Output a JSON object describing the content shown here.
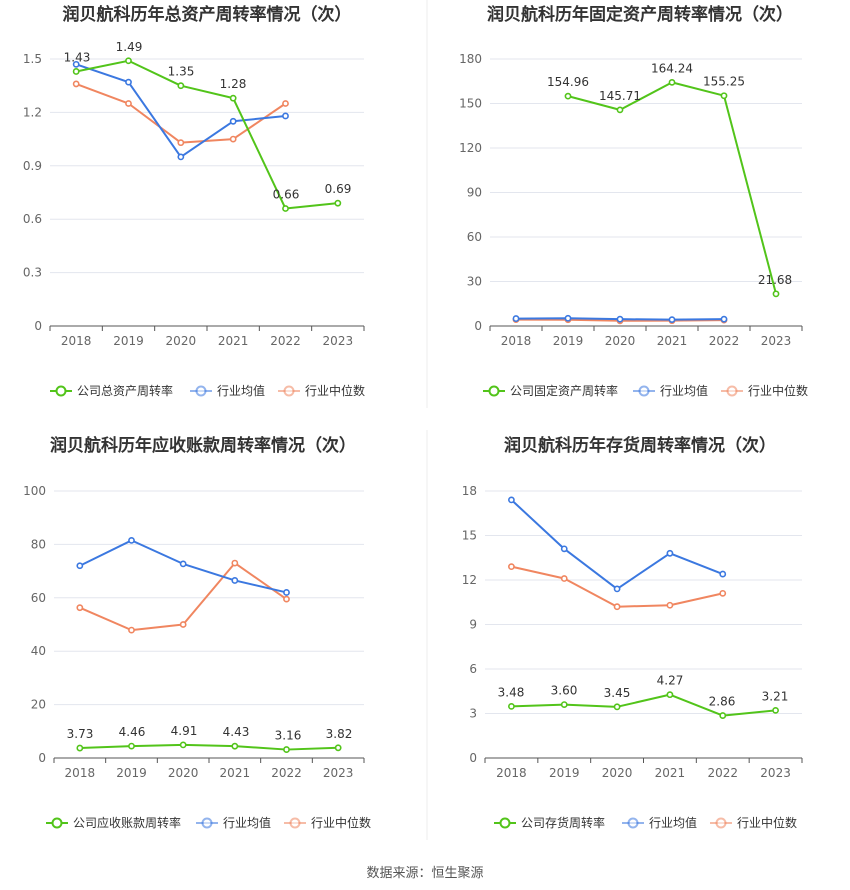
{
  "colors": {
    "company": "#52c41a",
    "avg": "#3b78e0",
    "median": "#f08660"
  },
  "source": "数据来源：恒生聚源",
  "chart_data": [
    {
      "type": "line",
      "title": "润贝航科历年总资产周转率情况（次）",
      "categories": [
        "2018",
        "2019",
        "2020",
        "2021",
        "2022",
        "2023"
      ],
      "yticks": [
        "0",
        "0.3",
        "0.6",
        "0.9",
        "1.2",
        "1.5"
      ],
      "ylim": [
        0,
        1.5
      ],
      "series": [
        {
          "name": "公司总资产周转率",
          "key": "company",
          "values": [
            1.43,
            1.49,
            1.35,
            1.28,
            0.66,
            0.69
          ],
          "labels": [
            "1.43",
            "1.49",
            "1.35",
            "1.28",
            "0.66",
            "0.69"
          ]
        },
        {
          "name": "行业均值",
          "key": "avg",
          "values": [
            1.47,
            1.37,
            0.95,
            1.15,
            1.18,
            null
          ]
        },
        {
          "name": "行业中位数",
          "key": "median",
          "values": [
            1.36,
            1.25,
            1.03,
            1.05,
            1.25,
            null
          ]
        }
      ]
    },
    {
      "type": "line",
      "title": "润贝航科历年固定资产周转率情况（次）",
      "categories": [
        "2018",
        "2019",
        "2020",
        "2021",
        "2022",
        "2023"
      ],
      "yticks": [
        "0",
        "30",
        "60",
        "90",
        "120",
        "150",
        "180"
      ],
      "ylim": [
        0,
        180
      ],
      "series": [
        {
          "name": "公司固定资产周转率",
          "key": "company",
          "values": [
            null,
            154.96,
            145.71,
            164.24,
            155.25,
            21.68
          ],
          "labels": [
            null,
            "154.96",
            "145.71",
            "164.24",
            "155.25",
            "21.68"
          ]
        },
        {
          "name": "行业均值",
          "key": "avg",
          "values": [
            5.0,
            5.2,
            4.6,
            4.3,
            4.6,
            null
          ]
        },
        {
          "name": "行业中位数",
          "key": "median",
          "values": [
            4.3,
            4.2,
            3.5,
            3.6,
            4.0,
            null
          ]
        }
      ]
    },
    {
      "type": "line",
      "title": "润贝航科历年应收账款周转率情况（次）",
      "categories": [
        "2018",
        "2019",
        "2020",
        "2021",
        "2022",
        "2023"
      ],
      "yticks": [
        "0",
        "20",
        "40",
        "60",
        "80",
        "100"
      ],
      "ylim": [
        0,
        100
      ],
      "series": [
        {
          "name": "公司应收账款周转率",
          "key": "company",
          "values": [
            3.73,
            4.46,
            4.91,
            4.43,
            3.16,
            3.82
          ],
          "labels": [
            "3.73",
            "4.46",
            "4.91",
            "4.43",
            "3.16",
            "3.82"
          ]
        },
        {
          "name": "行业均值",
          "key": "avg",
          "values": [
            72.0,
            81.5,
            72.7,
            66.5,
            62.0,
            null
          ]
        },
        {
          "name": "行业中位数",
          "key": "median",
          "values": [
            56.3,
            47.9,
            50.0,
            73.0,
            59.5,
            null
          ]
        }
      ]
    },
    {
      "type": "line",
      "title": "润贝航科历年存货周转率情况（次）",
      "categories": [
        "2018",
        "2019",
        "2020",
        "2021",
        "2022",
        "2023"
      ],
      "yticks": [
        "0",
        "3",
        "6",
        "9",
        "12",
        "15",
        "18"
      ],
      "ylim": [
        0,
        18
      ],
      "series": [
        {
          "name": "公司存货周转率",
          "key": "company",
          "values": [
            3.48,
            3.6,
            3.45,
            4.27,
            2.86,
            3.21
          ],
          "labels": [
            "3.48",
            "3.60",
            "3.45",
            "4.27",
            "2.86",
            "3.21"
          ]
        },
        {
          "name": "行业均值",
          "key": "avg",
          "values": [
            17.4,
            14.1,
            11.4,
            13.8,
            12.4,
            null
          ]
        },
        {
          "name": "行业中位数",
          "key": "median",
          "values": [
            12.9,
            12.1,
            10.2,
            10.3,
            11.1,
            null
          ]
        }
      ]
    }
  ]
}
